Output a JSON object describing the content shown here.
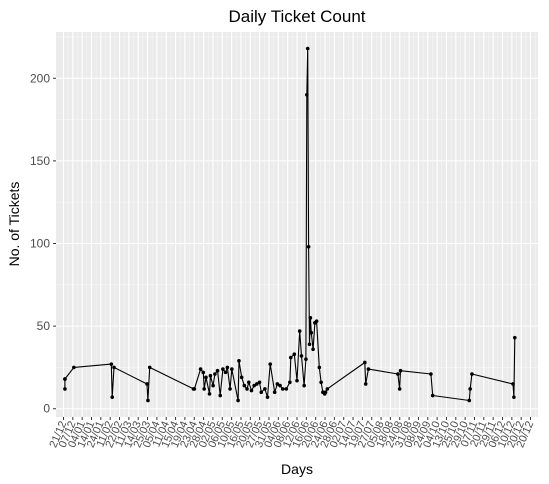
{
  "chart_data": {
    "type": "line",
    "title": "Daily Ticket Count",
    "xlabel": "Days",
    "ylabel": "No. of Tickets",
    "ylim": [
      -5,
      228
    ],
    "yticks": [
      0,
      50,
      100,
      150,
      200
    ],
    "grid": true,
    "background": "#ebebeb",
    "grid_major_color": "#ffffff",
    "line_color": "#000000",
    "xtick_labels": [
      "21/12",
      "07/12",
      "04/01",
      "14/01",
      "24/01",
      "11/02",
      "22/02",
      "11/03",
      "14/03",
      "25/03",
      "05/04",
      "11/04",
      "15/04",
      "19/04",
      "23/04",
      "28/04",
      "02/05",
      "06/05",
      "10/05",
      "16/05",
      "20/05",
      "27/05",
      "31/05",
      "04/06",
      "08/06",
      "12/06",
      "16/06",
      "20/06",
      "24/06",
      "28/06",
      "02/07",
      "14/07",
      "19/07",
      "27/07",
      "05/08",
      "18/08",
      "24/08",
      "31/08",
      "08/09",
      "24/09",
      "04/10",
      "13/10",
      "25/10",
      "29/10",
      "07/11",
      "20/11",
      "29/11",
      "06/12",
      "10/12",
      "20/12",
      "20/12"
    ],
    "x_range": [
      1,
      53.5
    ],
    "series": [
      {
        "x": [
          1,
          1,
          1,
          2,
          6.2,
          6.3,
          6.5,
          10.2,
          10.3,
          10.5,
          15.4,
          15.5,
          16.2,
          16.5,
          16.6,
          16.8,
          17.2,
          17.3,
          17.6,
          17.8,
          18.1,
          18.4,
          18.7,
          19,
          19.2,
          19.5,
          19.7,
          20.4,
          20.5,
          20.8,
          21.1,
          21.4,
          21.6,
          21.9,
          22.2,
          22.5,
          22.8,
          23,
          23.4,
          23.7,
          24,
          24.5,
          24.8,
          25.1,
          25.4,
          25.8,
          26.2,
          26.3,
          26.7,
          27,
          27.3,
          27.5,
          27.8,
          28,
          28.1,
          28.2,
          28.3,
          28.4,
          28.5,
          28.6,
          28.8,
          29,
          29.2,
          29.5,
          29.7,
          29.9,
          30.1,
          30.2,
          30.4,
          34.6,
          34.7,
          35,
          38.3,
          38.5,
          38.6,
          42,
          42.2,
          46.3,
          46.4,
          46.6,
          51.2,
          51.3,
          51.4
        ],
        "y": [
          18,
          12,
          18,
          25,
          27,
          7,
          25,
          15,
          5,
          25,
          12,
          12,
          24,
          22,
          12,
          19,
          9,
          20,
          14,
          21,
          23,
          8,
          24,
          22,
          25,
          12,
          24,
          5,
          29,
          19,
          14,
          12,
          16,
          11,
          14,
          15,
          16,
          10,
          12,
          7,
          27,
          10,
          15,
          14,
          12,
          12,
          16,
          31,
          33,
          17,
          47,
          32,
          14,
          30,
          190,
          218,
          98,
          39,
          55,
          46,
          36,
          52,
          53,
          25,
          16,
          10,
          9,
          10,
          12,
          28,
          15,
          24,
          21,
          12,
          23,
          21,
          8,
          5,
          12,
          21,
          15,
          7,
          43
        ]
      }
    ]
  }
}
